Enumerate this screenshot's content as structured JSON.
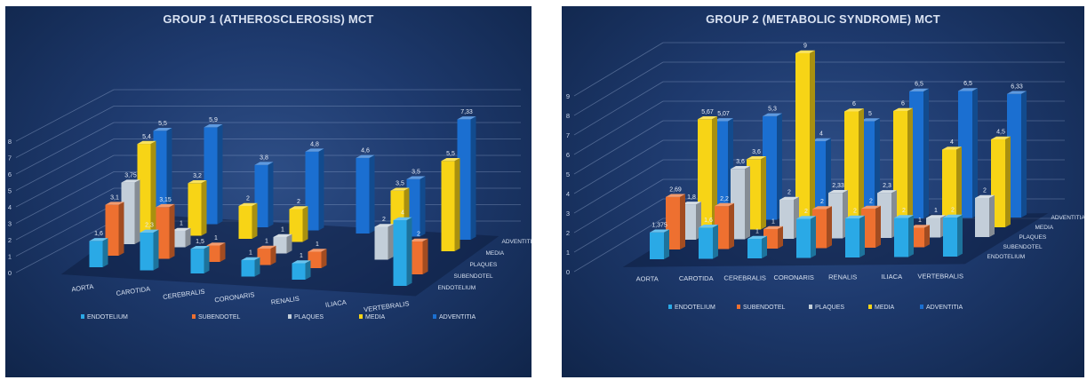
{
  "chart_data": [
    {
      "type": "bar",
      "title": "GROUP 1 (ATHEROSCLEROSIS) MCT",
      "categories": [
        "AORTA",
        "CAROTIDA",
        "CEREBRALIS",
        "CORONARIS",
        "RENALIS",
        "ILIACA",
        "VERTEBRALIS"
      ],
      "series": [
        {
          "name": "ENDOTELIUM",
          "color": "#2aa9e6",
          "values": [
            1.6,
            2.3,
            1.5,
            1,
            1,
            null,
            4
          ],
          "labels": [
            "1,6",
            "2,3",
            "1,5",
            "1",
            "1",
            "",
            "4"
          ]
        },
        {
          "name": "SUBENDOTEL",
          "color": "#ee7030",
          "values": [
            3.1,
            3.15,
            1,
            1,
            1,
            null,
            2
          ],
          "labels": [
            "3,1",
            "3,15",
            "1",
            "1",
            "1",
            "",
            "2"
          ]
        },
        {
          "name": "PLAQUES",
          "color": "#c3ced9",
          "values": [
            3.75,
            1,
            null,
            1,
            null,
            2,
            null
          ],
          "labels": [
            "3,75",
            "1",
            "",
            "1",
            "",
            "2",
            ""
          ]
        },
        {
          "name": "MEDIA",
          "color": "#f7d416",
          "values": [
            5.4,
            3.2,
            2,
            2,
            null,
            3.5,
            5.5
          ],
          "labels": [
            "5,4",
            "3,2",
            "2",
            "2",
            "",
            "3,5",
            "5,5"
          ]
        },
        {
          "name": "ADVENTITIA",
          "color": "#1b6fd1",
          "values": [
            5.5,
            5.9,
            3.8,
            4.8,
            4.6,
            3.5,
            7.33
          ],
          "labels": [
            "5,5",
            "5,9",
            "3,8",
            "4,8",
            "4,6",
            "3,5",
            "7,33"
          ]
        }
      ],
      "yticks": [
        "0",
        "1",
        "2",
        "3",
        "4",
        "5",
        "6",
        "7",
        "8"
      ],
      "ylim": [
        0,
        8
      ],
      "legend_position": "bottom",
      "grid": true
    },
    {
      "type": "bar",
      "title": "GROUP 2 (METABOLIC SYNDROME) MCT",
      "categories": [
        "AORTA",
        "CAROTIDA",
        "CEREBRALIS",
        "CORONARIS",
        "RENALIS",
        "ILIACA",
        "VERTEBRALIS"
      ],
      "series": [
        {
          "name": "ENDOTELIUM",
          "color": "#2aa9e6",
          "values": [
            1.375,
            1.6,
            1,
            2,
            2,
            2,
            2
          ],
          "labels": [
            "1,375",
            "1,6",
            "1",
            "2",
            "2",
            "2",
            "2"
          ]
        },
        {
          "name": "SUBENDOTEL",
          "color": "#ee7030",
          "values": [
            2.69,
            2.2,
            1,
            2,
            2,
            1,
            null
          ],
          "labels": [
            "2,69",
            "2,2",
            "1",
            "2",
            "2",
            "1",
            ""
          ]
        },
        {
          "name": "PLAQUES",
          "color": "#c3ced9",
          "values": [
            1.8,
            3.6,
            2,
            2.33,
            2.3,
            1,
            2
          ],
          "labels": [
            "1,8",
            "3,6",
            "2",
            "2,33",
            "2,3",
            "1",
            "2"
          ]
        },
        {
          "name": "MEDIA",
          "color": "#f7d416",
          "values": [
            5.67,
            3.6,
            9,
            6,
            6,
            4,
            4.5
          ],
          "labels": [
            "5,67",
            "3,6",
            "9",
            "6",
            "6",
            "4",
            "4,5"
          ]
        },
        {
          "name": "ADVENTITIA",
          "color": "#1b6fd1",
          "values": [
            5.07,
            5.3,
            4,
            5,
            6.5,
            6.5,
            6.33
          ],
          "labels": [
            "5,07",
            "5,3",
            "4",
            "5",
            "6,5",
            "6,5",
            "6,33"
          ]
        }
      ],
      "yticks": [
        "0",
        "1",
        "2",
        "3",
        "4",
        "5",
        "6",
        "7",
        "8",
        "9"
      ],
      "ylim": [
        0,
        9
      ],
      "legend_position": "bottom",
      "grid": true
    }
  ]
}
